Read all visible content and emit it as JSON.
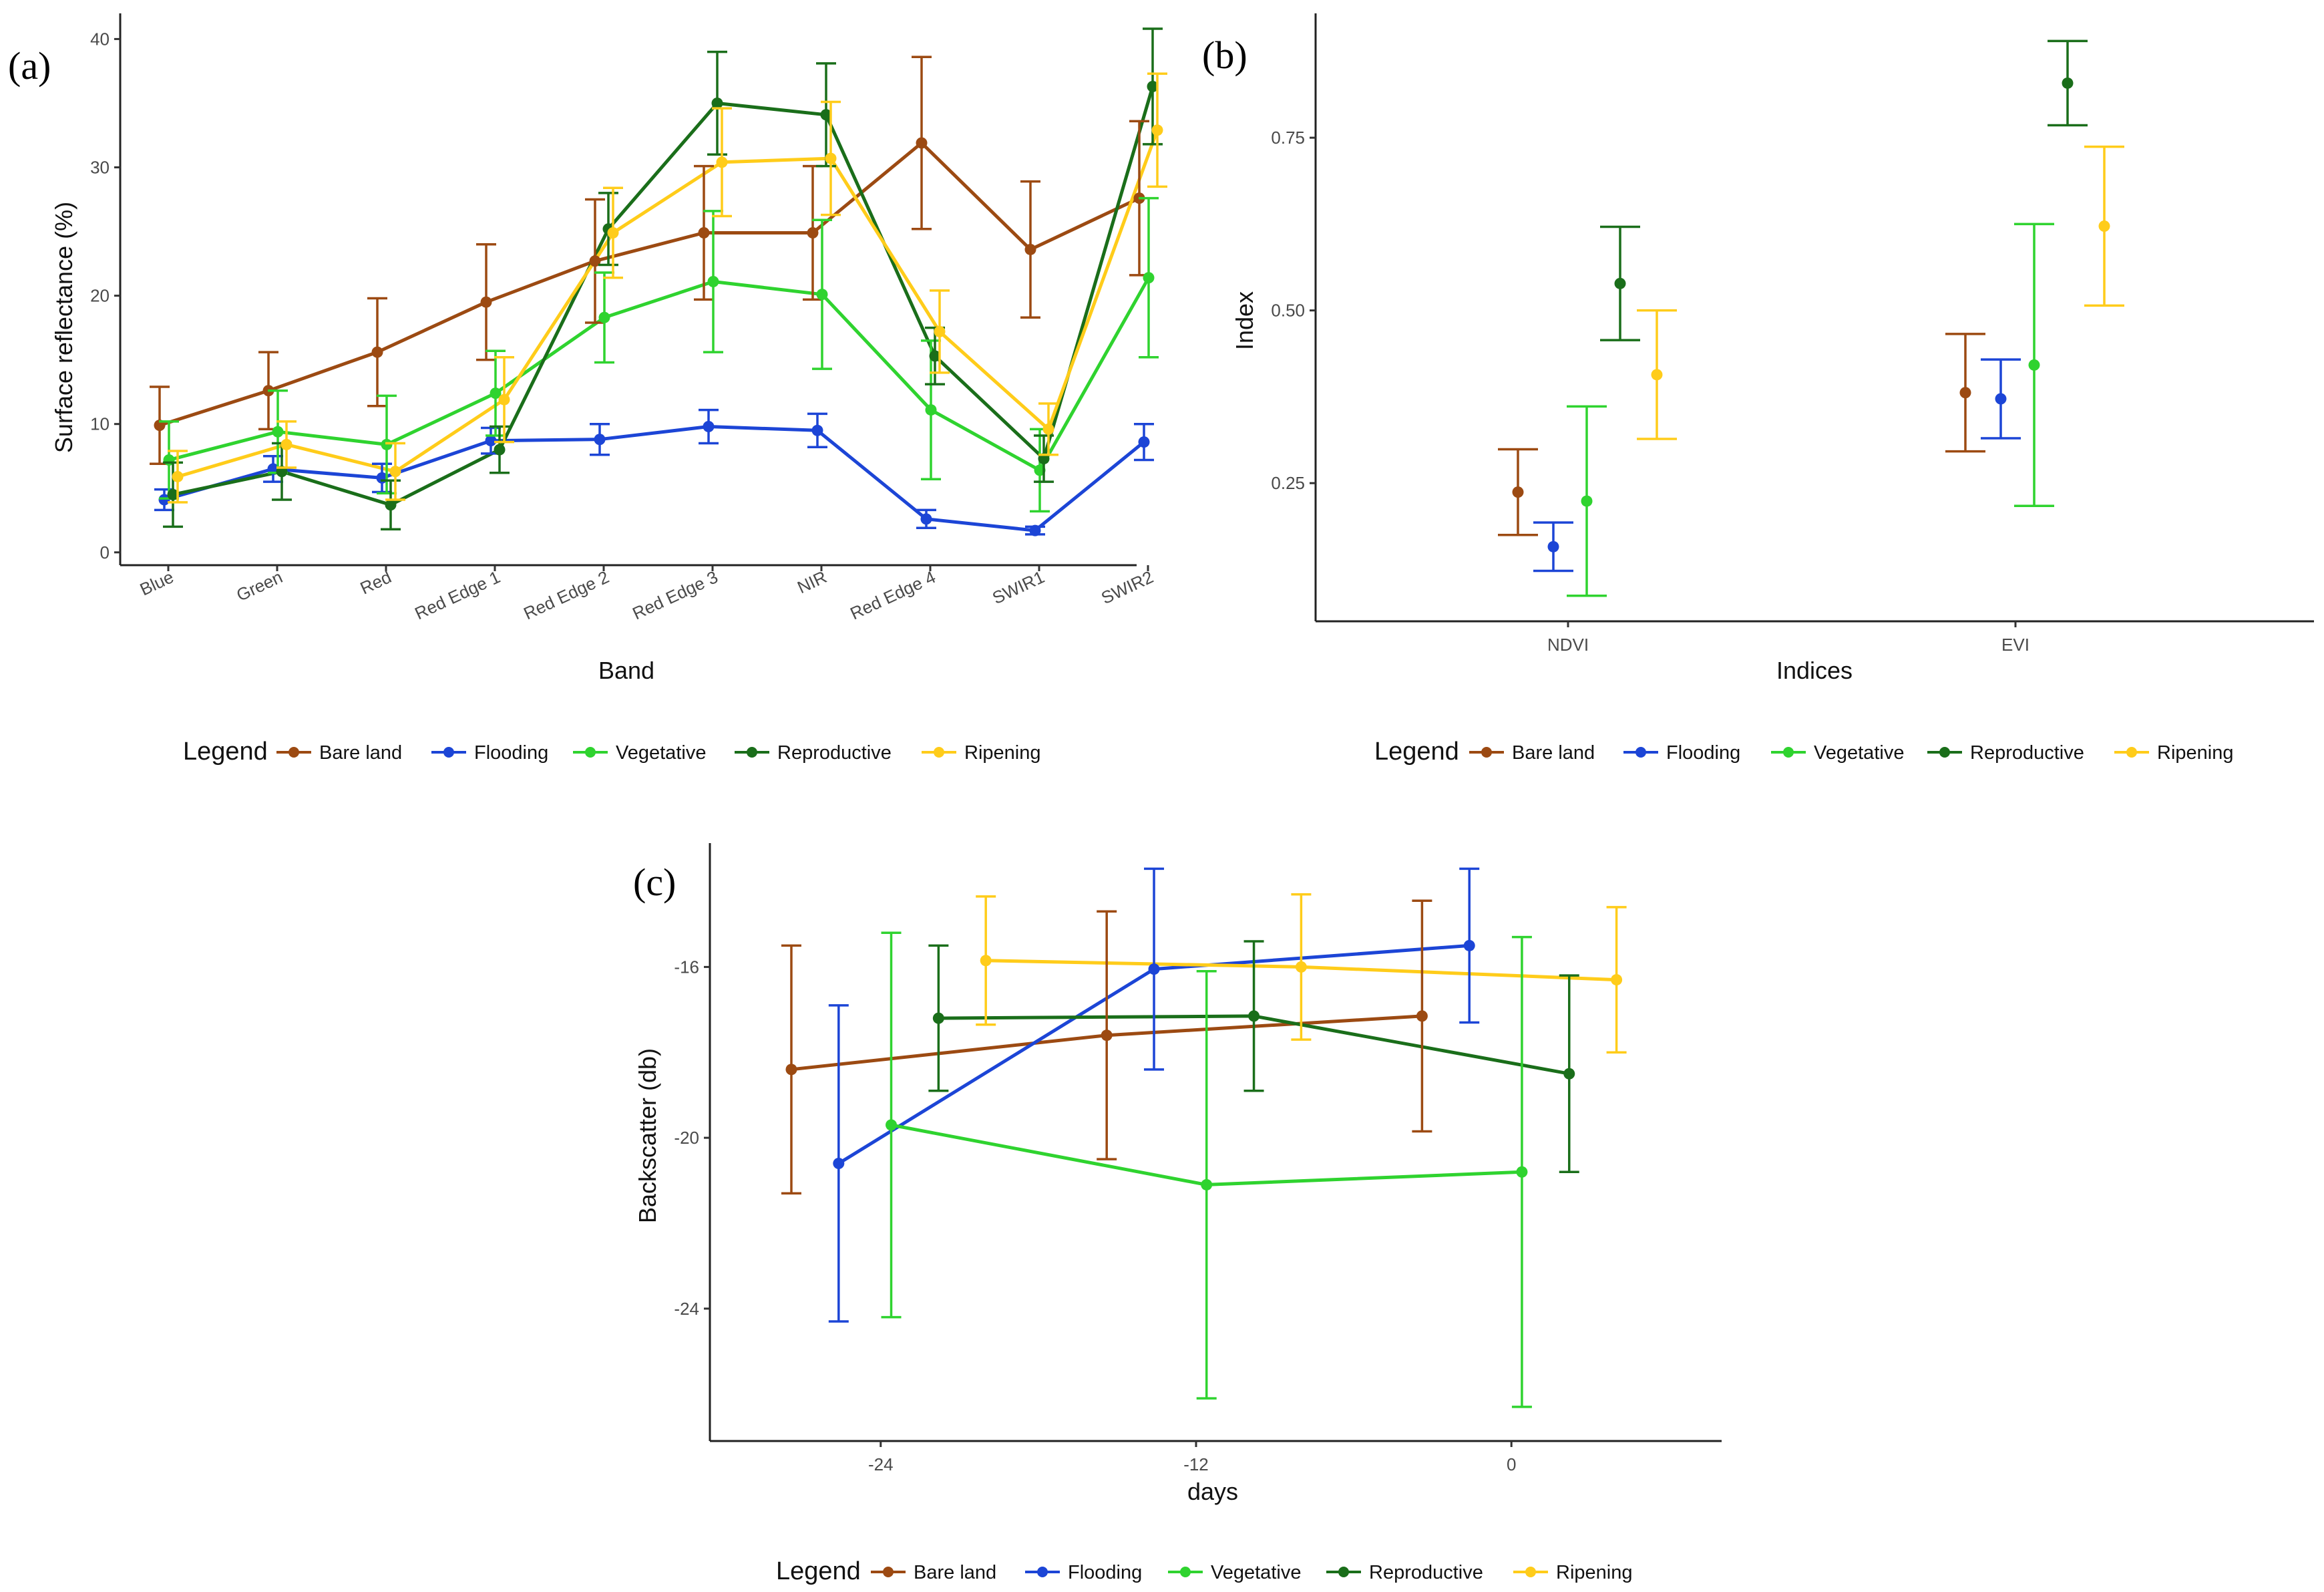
{
  "colors": {
    "Bare land": "#9c4a12",
    "Flooding": "#1c45d6",
    "Vegetative": "#2fd32f",
    "Reproductive": "#1a6e1a",
    "Ripening": "#ffcc1a"
  },
  "legend": {
    "title": "Legend",
    "entries": [
      "Bare land",
      "Flooding",
      "Vegetative",
      "Reproductive",
      "Ripening"
    ]
  },
  "chart_data": [
    {
      "id": "a",
      "panel_label": "(a)",
      "type": "line",
      "xlabel": "Band",
      "ylabel": "Surface reflectance (%)",
      "categories": [
        "Blue",
        "Green",
        "Red",
        "Red Edge 1",
        "Red Edge 2",
        "Red Edge 3",
        "NIR",
        "Red Edge 4",
        "SWIR1",
        "SWIR2"
      ],
      "ylim": [
        -1,
        42
      ],
      "yticks": [
        0,
        10,
        20,
        30,
        40
      ],
      "ytick_labels": [
        "0",
        "10",
        "20",
        "30",
        "40"
      ],
      "series": [
        {
          "name": "Bare land",
          "values": [
            9.9,
            12.6,
            15.6,
            19.5,
            22.7,
            24.9,
            24.9,
            31.9,
            23.6,
            27.6
          ],
          "err": [
            3.0,
            3.0,
            4.2,
            4.5,
            4.8,
            5.2,
            5.2,
            6.7,
            5.3,
            6.0
          ]
        },
        {
          "name": "Flooding",
          "values": [
            4.1,
            6.5,
            5.8,
            8.7,
            8.8,
            9.8,
            9.5,
            2.6,
            1.7,
            8.6
          ],
          "err": [
            0.8,
            1.0,
            1.1,
            1.0,
            1.2,
            1.3,
            1.3,
            0.7,
            0.3,
            1.4
          ]
        },
        {
          "name": "Vegetative",
          "values": [
            7.2,
            9.4,
            8.4,
            12.4,
            18.3,
            21.1,
            20.1,
            11.1,
            6.4,
            21.4
          ],
          "err": [
            3.0,
            3.2,
            3.8,
            3.3,
            3.5,
            5.5,
            5.8,
            5.4,
            3.2,
            6.2
          ]
        },
        {
          "name": "Reproductive",
          "values": [
            4.5,
            6.3,
            3.7,
            8.0,
            25.2,
            35.0,
            34.1,
            15.3,
            7.3,
            36.3
          ],
          "err": [
            2.5,
            2.2,
            1.9,
            1.8,
            2.8,
            4.0,
            4.0,
            2.2,
            1.8,
            4.5
          ]
        },
        {
          "name": "Ripening",
          "values": [
            5.9,
            8.4,
            6.3,
            11.9,
            24.9,
            30.4,
            30.7,
            17.2,
            9.6,
            32.9
          ],
          "err": [
            2.0,
            1.8,
            2.2,
            3.3,
            3.5,
            4.2,
            4.4,
            3.2,
            2.0,
            4.4
          ]
        }
      ]
    },
    {
      "id": "b",
      "panel_label": "(b)",
      "type": "scatter",
      "xlabel": "Indices",
      "ylabel": "Index",
      "categories": [
        "NDVI",
        "EVI"
      ],
      "ylim": [
        0.05,
        0.93
      ],
      "yticks": [
        0.25,
        0.5,
        0.75
      ],
      "ytick_labels": [
        "0.25",
        "0.50",
        "0.75"
      ],
      "series": [
        {
          "name": "Bare land",
          "values": [
            0.237,
            0.381
          ],
          "err": [
            0.062,
            0.085
          ]
        },
        {
          "name": "Flooding",
          "values": [
            0.158,
            0.372
          ],
          "err": [
            0.035,
            0.057
          ]
        },
        {
          "name": "Vegetative",
          "values": [
            0.224,
            0.421
          ],
          "err": [
            0.137,
            0.204
          ]
        },
        {
          "name": "Reproductive",
          "values": [
            0.539,
            0.829
          ],
          "err": [
            0.082,
            0.061
          ]
        },
        {
          "name": "Ripening",
          "values": [
            0.407,
            0.622
          ],
          "err": [
            0.093,
            0.115
          ]
        }
      ]
    },
    {
      "id": "c",
      "panel_label": "(c)",
      "type": "line",
      "xlabel": "days",
      "ylabel": "Backscatter (db)",
      "x": [
        -24,
        -12,
        0
      ],
      "xlim": [
        -30.5,
        8
      ],
      "xticks": [
        -24,
        -12,
        0
      ],
      "xtick_labels": [
        "-24",
        "-12",
        "0"
      ],
      "ylim": [
        -27.1,
        -13.1
      ],
      "yticks": [
        -24,
        -20,
        -16
      ],
      "ytick_labels": [
        "-24",
        "-20",
        "-16"
      ],
      "series": [
        {
          "name": "Bare land",
          "values": [
            -18.4,
            -17.6,
            -17.15
          ],
          "err": [
            2.9,
            2.9,
            2.7
          ]
        },
        {
          "name": "Flooding",
          "values": [
            -20.6,
            -16.05,
            -15.5
          ],
          "err": [
            3.7,
            2.35,
            1.8
          ]
        },
        {
          "name": "Vegetative",
          "values": [
            -19.7,
            -21.1,
            -20.8
          ],
          "err": [
            4.5,
            5.0,
            5.5
          ]
        },
        {
          "name": "Reproductive",
          "values": [
            -17.2,
            -17.15,
            -18.5
          ],
          "err": [
            1.7,
            1.75,
            2.3
          ]
        },
        {
          "name": "Ripening",
          "values": [
            -15.85,
            -16.0,
            -16.3
          ],
          "err": [
            1.5,
            1.7,
            1.7
          ]
        }
      ]
    }
  ]
}
